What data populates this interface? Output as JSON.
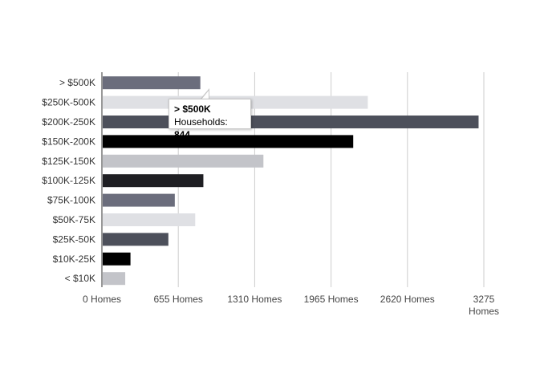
{
  "chart_data": {
    "type": "bar",
    "orientation": "horizontal",
    "categories": [
      "> $500K",
      "$250K-500K",
      "$200K-250K",
      "$150K-200K",
      "$125K-150K",
      "$100K-125K",
      "$75K-100K",
      "$50K-75K",
      "$25K-50K",
      "$10K-25K",
      "< $10K"
    ],
    "values": [
      844,
      2280,
      3230,
      2155,
      1385,
      870,
      625,
      800,
      570,
      245,
      200
    ],
    "colors": [
      "#6b6d7c",
      "#dfe0e4",
      "#4d505b",
      "#000000",
      "#c3c4c9",
      "#1f1f23",
      "#6b6d7c",
      "#dfe0e4",
      "#4d505b",
      "#000000",
      "#c3c4c9"
    ],
    "xlim": [
      0,
      3275
    ],
    "xticks": [
      0,
      655,
      1310,
      1965,
      2620,
      3275
    ],
    "xtick_labels": [
      "0 Homes",
      "655 Homes",
      "1310 Homes",
      "1965 Homes",
      "2620 Homes",
      "3275 Homes"
    ],
    "grid": true,
    "tooltip": {
      "category": "> $500K",
      "label": "Households: ",
      "value": "844"
    }
  }
}
